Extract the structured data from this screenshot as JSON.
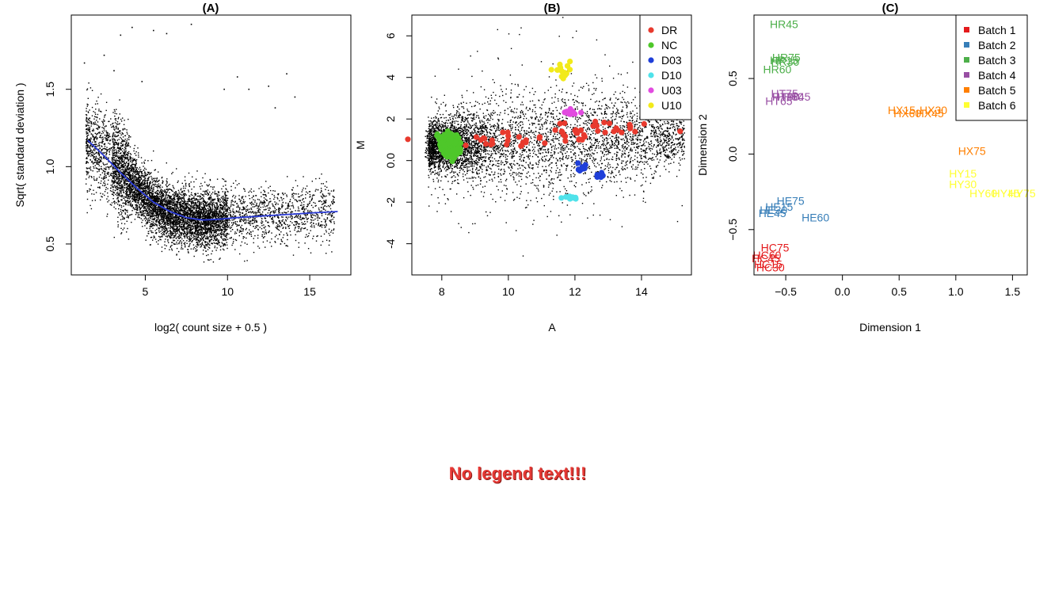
{
  "annotation": {
    "text": "No legend text!!!",
    "color": "#e53935"
  },
  "chart_data": [
    {
      "panel": "(A)",
      "type": "scatter",
      "xlabel": "log2( count size + 0.5 )",
      "ylabel": "Sqrt( standard deviation )",
      "xlim": [
        0.5,
        17.5
      ],
      "ylim": [
        0.3,
        1.98
      ],
      "xticks": [
        5,
        10,
        15
      ],
      "yticks": [
        0.5,
        1.0,
        1.5
      ],
      "point_color": "#000000",
      "cloud_summary": {
        "mean": {
          "x": [
            1.5,
            3,
            4,
            5,
            6,
            7,
            8,
            9,
            10,
            12,
            14,
            16
          ],
          "y": [
            1.15,
            1.05,
            0.92,
            0.8,
            0.72,
            0.68,
            0.66,
            0.66,
            0.67,
            0.69,
            0.7,
            0.71
          ]
        },
        "spread_sd": 0.09,
        "x_range": [
          1.4,
          16.5
        ],
        "outliers": [
          [
            3.5,
            1.85
          ],
          [
            4.2,
            1.9
          ],
          [
            5.5,
            1.88
          ],
          [
            6.3,
            1.86
          ],
          [
            7.8,
            1.92
          ],
          [
            3.1,
            1.62
          ],
          [
            4.8,
            1.55
          ],
          [
            11.3,
            1.5
          ],
          [
            12.5,
            1.52
          ],
          [
            13.6,
            1.6
          ],
          [
            14.1,
            1.45
          ],
          [
            15.5,
            0.85
          ],
          [
            16.2,
            0.52
          ],
          [
            1.3,
            1.67
          ],
          [
            2.5,
            1.72
          ],
          [
            9.8,
            1.5
          ],
          [
            10.6,
            1.58
          ],
          [
            12.9,
            1.38
          ]
        ]
      },
      "trend": {
        "color": "#2b3bd6",
        "x": [
          1.5,
          2.5,
          3.5,
          4.5,
          5.5,
          6.5,
          7.5,
          8.5,
          9.5,
          10.5,
          12,
          13.5,
          15,
          16.7
        ],
        "y": [
          1.17,
          1.07,
          0.96,
          0.86,
          0.77,
          0.71,
          0.67,
          0.655,
          0.66,
          0.67,
          0.68,
          0.69,
          0.7,
          0.71
        ]
      }
    },
    {
      "panel": "(B)",
      "type": "scatter",
      "xlabel": "A",
      "ylabel": "M",
      "xlim": [
        7.1,
        15.5
      ],
      "ylim": [
        -5.5,
        7.0
      ],
      "xticks": [
        8,
        10,
        12,
        14
      ],
      "yticks": [
        -4,
        -2,
        0,
        2,
        4,
        6
      ],
      "background_color": "#000000",
      "background_summary": {
        "center": {
          "a": [
            7.8,
            9,
            10,
            11,
            12,
            13,
            14,
            15
          ],
          "m": [
            0.7,
            0.8,
            0.85,
            0.95,
            1.0,
            1.0,
            1.1,
            1.2
          ]
        },
        "spread_sd": [
          0.55,
          0.8,
          1.1,
          1.3,
          1.3,
          1.1,
          0.9,
          0.7
        ],
        "a_range": [
          7.5,
          15.3
        ]
      },
      "series": [
        {
          "name": "DR",
          "color": "#e83a2e",
          "center": [
            11.2,
            1.1
          ],
          "spread": [
            2.0,
            0.3
          ],
          "count": 60,
          "clusters": [
            [
              9.0,
              0.95
            ],
            [
              9.8,
              1.0
            ],
            [
              10.6,
              1.1
            ],
            [
              11.3,
              1.15
            ],
            [
              12.0,
              1.4
            ],
            [
              12.3,
              1.6
            ],
            [
              13.6,
              1.55
            ]
          ]
        },
        {
          "name": "NC",
          "color": "#4ec72a",
          "center": [
            8.15,
            0.7
          ],
          "spread": [
            0.35,
            0.45
          ],
          "count": 120,
          "clusters": [
            [
              8.1,
              0.8
            ],
            [
              8.3,
              0.6
            ]
          ]
        },
        {
          "name": "D03",
          "color": "#1f3fd9",
          "center": [
            12.8,
            -0.7
          ],
          "spread": [
            0.25,
            0.15
          ],
          "count": 20,
          "clusters": [
            [
              12.2,
              -0.35
            ],
            [
              12.8,
              -0.75
            ]
          ]
        },
        {
          "name": "D10",
          "color": "#4fe2ea",
          "center": [
            12.0,
            -1.8
          ],
          "spread": [
            0.35,
            0.08
          ],
          "count": 16,
          "clusters": [
            [
              11.9,
              -1.8
            ]
          ]
        },
        {
          "name": "U03",
          "color": "#e24be0",
          "center": [
            11.9,
            2.3
          ],
          "spread": [
            0.35,
            0.08
          ],
          "count": 22,
          "clusters": [
            [
              11.9,
              2.3
            ]
          ]
        },
        {
          "name": "U10",
          "color": "#f2ea1a",
          "center": [
            11.5,
            4.4
          ],
          "spread": [
            0.4,
            0.25
          ],
          "count": 14,
          "clusters": [
            [
              11.6,
              4.4
            ]
          ]
        }
      ],
      "legend": {
        "position": "top-right",
        "entries": [
          "DR",
          "NC",
          "D03",
          "D10",
          "U03",
          "U10"
        ]
      }
    },
    {
      "panel": "(C)",
      "type": "scatter",
      "xlabel": "Dimension 1",
      "ylabel": "Dimension 2",
      "xlim": [
        -0.78,
        1.63
      ],
      "ylim": [
        -0.8,
        0.92
      ],
      "xticks": [
        -0.5,
        0.0,
        0.5,
        1.0,
        1.5
      ],
      "xtick_labels": [
        "−0.5",
        "0.0",
        "0.5",
        "1.0",
        "1.5"
      ],
      "yticks": [
        -0.5,
        0.0,
        0.5
      ],
      "yticks_labels": [
        "−0.5",
        "0.0",
        "0.5"
      ],
      "markers": "text labels",
      "series": [
        {
          "name": "Batch 1",
          "color": "#e41a1c",
          "points": [
            {
              "label": "HC75",
              "x": -0.72,
              "y": -0.62
            },
            {
              "label": "HC60",
              "x": -0.79,
              "y": -0.67
            },
            {
              "label": "HC45",
              "x": -0.8,
              "y": -0.69
            },
            {
              "label": "HC15",
              "x": -0.78,
              "y": -0.73
            },
            {
              "label": "HC30",
              "x": -0.76,
              "y": -0.75
            }
          ]
        },
        {
          "name": "Batch 2",
          "color": "#377eb8",
          "points": [
            {
              "label": "HE75",
              "x": -0.58,
              "y": -0.31
            },
            {
              "label": "HE15",
              "x": -0.68,
              "y": -0.35
            },
            {
              "label": "HE30",
              "x": -0.73,
              "y": -0.37
            },
            {
              "label": "HE45",
              "x": -0.74,
              "y": -0.39
            },
            {
              "label": "HE60",
              "x": -0.36,
              "y": -0.42
            }
          ]
        },
        {
          "name": "Batch 3",
          "color": "#4daf4a",
          "points": [
            {
              "label": "HR45",
              "x": -0.64,
              "y": 0.86
            },
            {
              "label": "HR75",
              "x": -0.62,
              "y": 0.64
            },
            {
              "label": "HR15",
              "x": -0.64,
              "y": 0.62
            },
            {
              "label": "HR30",
              "x": -0.63,
              "y": 0.61
            },
            {
              "label": "HR60",
              "x": -0.7,
              "y": 0.56
            }
          ]
        },
        {
          "name": "Batch 4",
          "color": "#984ea3",
          "points": [
            {
              "label": "HT75",
              "x": -0.63,
              "y": 0.4
            },
            {
              "label": "HT30",
              "x": -0.62,
              "y": 0.38
            },
            {
              "label": "HT60",
              "x": -0.58,
              "y": 0.38
            },
            {
              "label": "HT45",
              "x": -0.52,
              "y": 0.38
            },
            {
              "label": "HT65",
              "x": -0.68,
              "y": 0.35
            }
          ]
        },
        {
          "name": "Batch 5",
          "color": "#ff7f00",
          "points": [
            {
              "label": "HX15",
              "x": 0.4,
              "y": 0.29
            },
            {
              "label": "HX30",
              "x": 0.68,
              "y": 0.29
            },
            {
              "label": "HX60",
              "x": 0.45,
              "y": 0.27
            },
            {
              "label": "HX45",
              "x": 0.65,
              "y": 0.27
            },
            {
              "label": "HX75",
              "x": 1.02,
              "y": 0.02
            }
          ]
        },
        {
          "name": "Batch 6",
          "color": "#ffff33",
          "points": [
            {
              "label": "HY15",
              "x": 0.94,
              "y": -0.13
            },
            {
              "label": "HY30",
              "x": 0.94,
              "y": -0.2
            },
            {
              "label": "HY60",
              "x": 1.12,
              "y": -0.26
            },
            {
              "label": "HY45",
              "x": 1.32,
              "y": -0.26
            },
            {
              "label": "HY75",
              "x": 1.46,
              "y": -0.26
            }
          ]
        }
      ],
      "legend": {
        "position": "top-right",
        "entries": [
          "Batch 1",
          "Batch 2",
          "Batch 3",
          "Batch 4",
          "Batch 5",
          "Batch 6"
        ]
      }
    }
  ]
}
